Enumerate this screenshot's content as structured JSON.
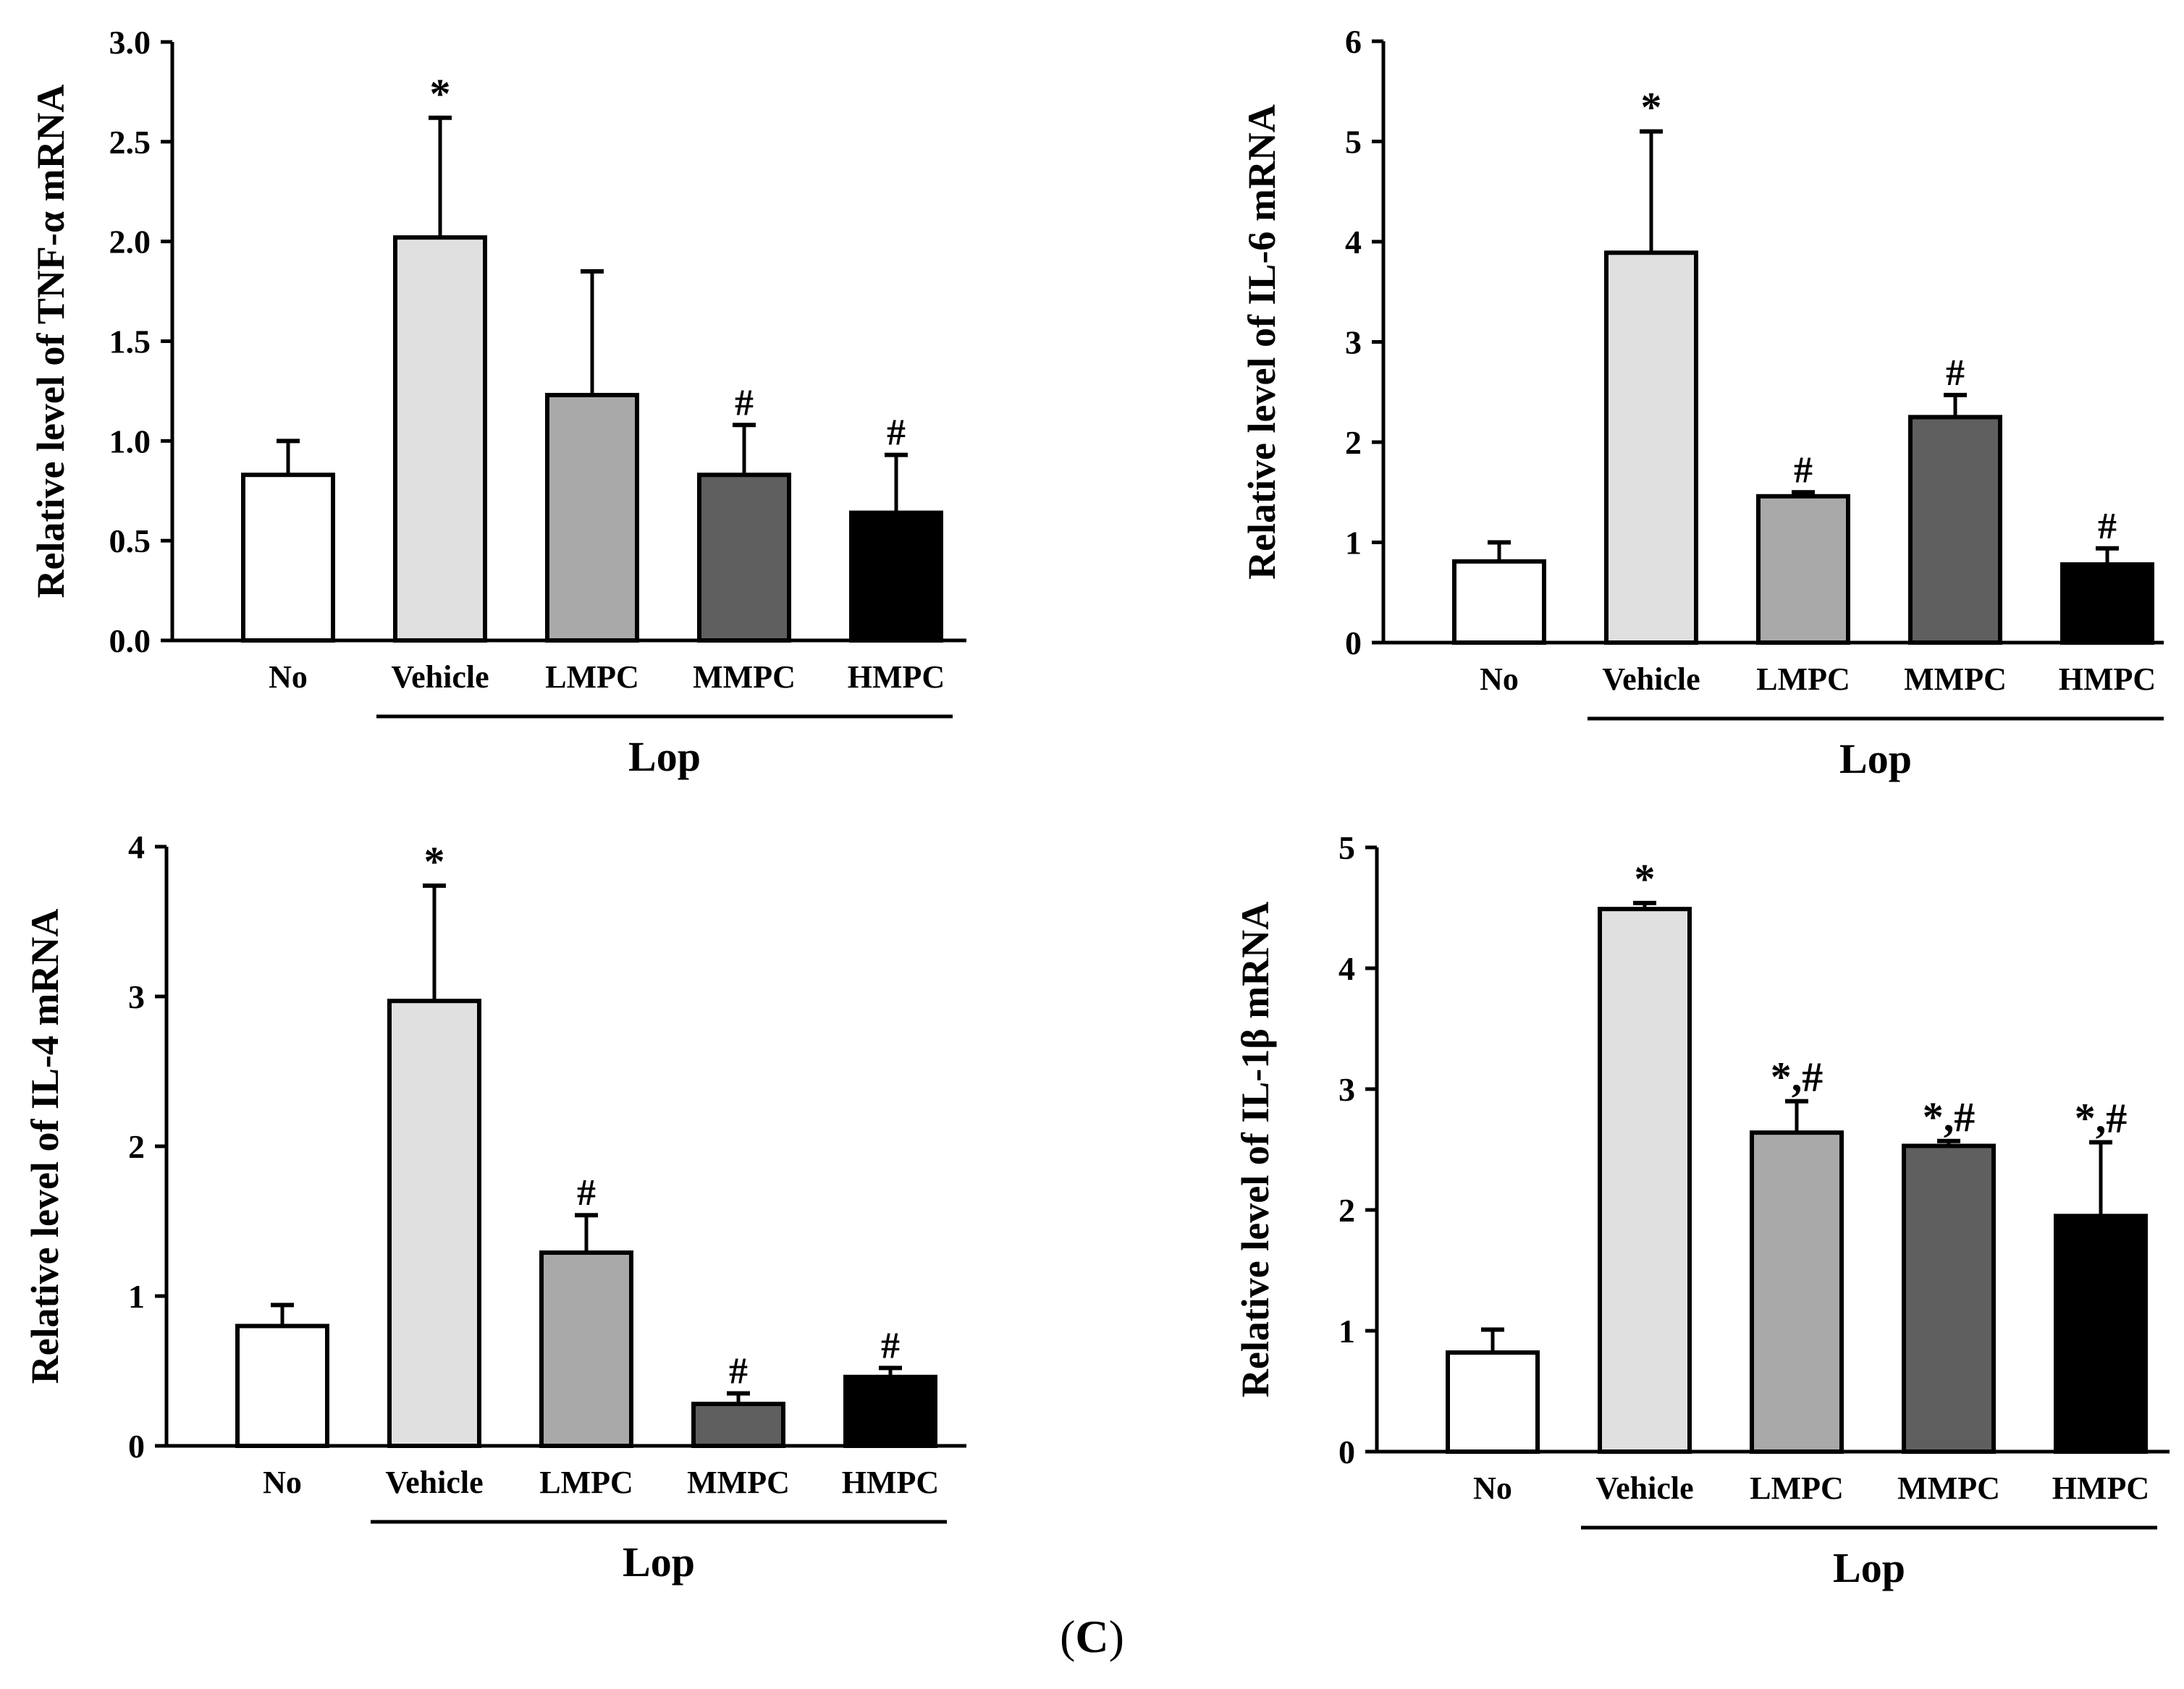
{
  "chart_data": [
    {
      "type": "bar",
      "ylabel": "Relative level of TNF-α mRNA",
      "categories": [
        "No",
        "Vehicle",
        "LMPC",
        "MMPC",
        "HMPC"
      ],
      "values": [
        0.83,
        2.02,
        1.23,
        0.83,
        0.64
      ],
      "errors": [
        0.17,
        0.6,
        0.62,
        0.25,
        0.29
      ],
      "annotations": [
        "",
        "*",
        "",
        "#",
        "#"
      ],
      "ylim": [
        0,
        3.0
      ],
      "yticks": [
        "0.0",
        "0.5",
        "1.0",
        "1.5",
        "2.0",
        "2.5",
        "3.0"
      ],
      "bracket_label": "Lop",
      "colors": [
        "#ffffff",
        "#e0e0e0",
        "#a9a9a9",
        "#5f5f5f",
        "#000000"
      ]
    },
    {
      "type": "bar",
      "ylabel": "Relative level of IL-6 mRNA",
      "categories": [
        "No",
        "Vehicle",
        "LMPC",
        "MMPC",
        "HMPC"
      ],
      "values": [
        0.81,
        3.89,
        1.46,
        2.25,
        0.78
      ],
      "errors": [
        0.19,
        1.21,
        0.04,
        0.22,
        0.16
      ],
      "annotations": [
        "",
        "*",
        "#",
        "#",
        "#"
      ],
      "ylim": [
        0,
        6
      ],
      "yticks": [
        "0",
        "1",
        "2",
        "3",
        "4",
        "5",
        "6"
      ],
      "bracket_label": "Lop",
      "colors": [
        "#ffffff",
        "#e0e0e0",
        "#a9a9a9",
        "#5f5f5f",
        "#000000"
      ]
    },
    {
      "type": "bar",
      "ylabel": "Relative level of IL-4 mRNA",
      "categories": [
        "No",
        "Vehicle",
        "LMPC",
        "MMPC",
        "HMPC"
      ],
      "values": [
        0.8,
        2.97,
        1.29,
        0.28,
        0.46
      ],
      "errors": [
        0.14,
        0.77,
        0.25,
        0.07,
        0.06
      ],
      "annotations": [
        "",
        "*",
        "#",
        "#",
        "#"
      ],
      "ylim": [
        0,
        4
      ],
      "yticks": [
        "0",
        "1",
        "2",
        "3",
        "4"
      ],
      "bracket_label": "Lop",
      "colors": [
        "#ffffff",
        "#e0e0e0",
        "#a9a9a9",
        "#5f5f5f",
        "#000000"
      ]
    },
    {
      "type": "bar",
      "ylabel": "Relative level of IL-1β mRNA",
      "categories": [
        "No",
        "Vehicle",
        "LMPC",
        "MMPC",
        "HMPC"
      ],
      "values": [
        0.82,
        4.49,
        2.64,
        2.53,
        1.95
      ],
      "errors": [
        0.19,
        0.05,
        0.26,
        0.04,
        0.61
      ],
      "annotations": [
        "",
        "*",
        "*,#",
        "*,#",
        "*,#"
      ],
      "ylim": [
        0,
        5
      ],
      "yticks": [
        "0",
        "1",
        "2",
        "3",
        "4",
        "5"
      ],
      "bracket_label": "Lop",
      "colors": [
        "#ffffff",
        "#e0e0e0",
        "#a9a9a9",
        "#5f5f5f",
        "#000000"
      ]
    }
  ],
  "caption": {
    "open": "(",
    "letter": "C",
    "close": ")"
  }
}
